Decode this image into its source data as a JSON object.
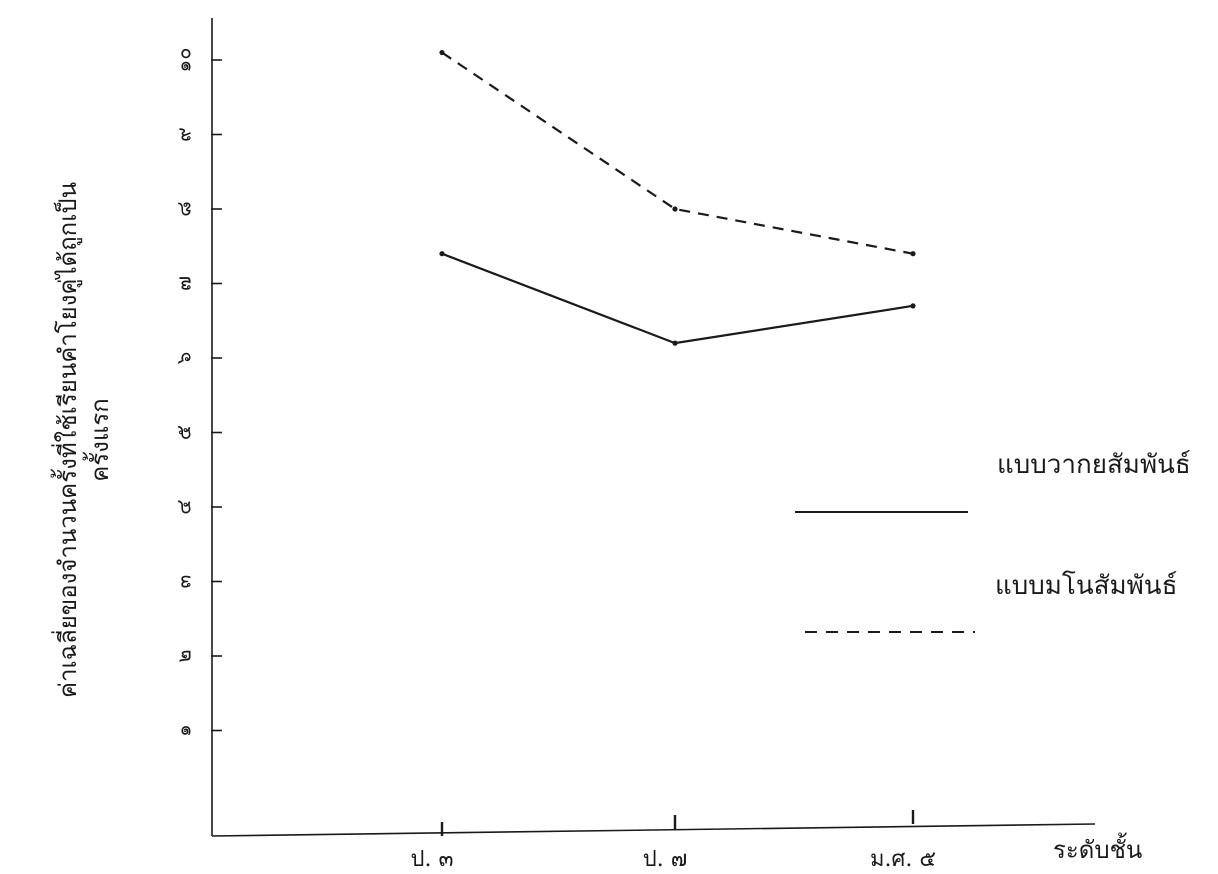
{
  "chart_data": {
    "type": "line",
    "categories": [
      "ป. ๓",
      "ป. ๗",
      "ม.ศ. ๕"
    ],
    "y_ticks": [
      "๑",
      "๒",
      "๓",
      "๔",
      "๕",
      "๖",
      "๗",
      "๘",
      "๙",
      "๑๐"
    ],
    "ylim": [
      0,
      10.5
    ],
    "ylabel": {
      "line1": "ค่าเฉลี่ยของจำนวนครั้งที่ใช้เรียนคำโยงคู่ได้ถูกเป็น",
      "line2": "ครั้งแรก"
    },
    "xlabel": "ระดับชั้น",
    "series": [
      {
        "name": "แบบวากยสัมพันธ์",
        "values": [
          7.4,
          6.2,
          6.7
        ],
        "style": "solid",
        "color": "#1a1a1a"
      },
      {
        "name": "แบบมโนสัมพันธ์",
        "values": [
          10.1,
          8.0,
          7.4
        ],
        "style": "dashed",
        "color": "#1a1a1a"
      }
    ],
    "legend_position": "right"
  }
}
